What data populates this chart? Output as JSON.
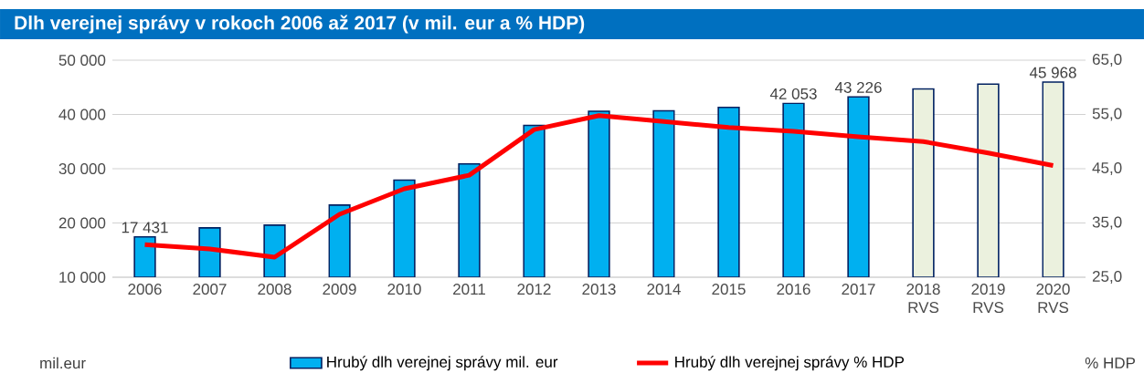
{
  "chart_data": {
    "type": "bar",
    "title": "Dlh verejnej správy v rokoch 2006 až 2017 (v mil. eur a % HDP)",
    "categories": [
      "2006",
      "2007",
      "2008",
      "2009",
      "2010",
      "2011",
      "2012",
      "2013",
      "2014",
      "2015",
      "2016",
      "2017",
      "2018 RVS",
      "2019 RVS",
      "2020 RVS"
    ],
    "series": [
      {
        "name": "Hrubý dlh verejnej správy  mil. eur",
        "color": "#00b0f0",
        "colors": [
          "#00b0f0",
          "#00b0f0",
          "#00b0f0",
          "#00b0f0",
          "#00b0f0",
          "#00b0f0",
          "#00b0f0",
          "#00b0f0",
          "#00b0f0",
          "#00b0f0",
          "#00b0f0",
          "#00b0f0",
          "#ebf1de",
          "#ebf1de",
          "#ebf1de"
        ],
        "values": [
          17431,
          19100,
          19600,
          23300,
          27900,
          30900,
          38000,
          40600,
          40700,
          41300,
          42053,
          43226,
          44700,
          45600,
          45968
        ],
        "value_labels": [
          "17 431",
          null,
          null,
          null,
          null,
          null,
          null,
          null,
          null,
          null,
          "42 053",
          "43 226",
          null,
          null,
          "45 968"
        ]
      },
      {
        "name": "Hrubý dlh verejnej správy  % HDP",
        "type": "line",
        "axis": "y2",
        "color": "#ff0000",
        "values": [
          31.0,
          30.2,
          28.7,
          36.6,
          41.3,
          43.8,
          52.2,
          54.8,
          53.7,
          52.6,
          51.9,
          50.9,
          50.0,
          47.9,
          45.6
        ]
      }
    ],
    "ylabel": "mil.eur",
    "y2label": "% HDP",
    "ylim": [
      10000,
      50000
    ],
    "yticks": [
      {
        "value": 10000,
        "label": "10 000"
      },
      {
        "value": 20000,
        "label": "20 000"
      },
      {
        "value": 30000,
        "label": "30 000"
      },
      {
        "value": 40000,
        "label": "40 000"
      },
      {
        "value": 50000,
        "label": "50 000"
      }
    ],
    "y2lim": [
      25,
      65
    ],
    "y2ticks": [
      {
        "value": 25,
        "label": "25,0"
      },
      {
        "value": 35,
        "label": "35,0"
      },
      {
        "value": 45,
        "label": "45,0"
      },
      {
        "value": 55,
        "label": "55,0"
      },
      {
        "value": 65,
        "label": "65,0"
      }
    ],
    "grid": "y",
    "legend": "bottom"
  }
}
